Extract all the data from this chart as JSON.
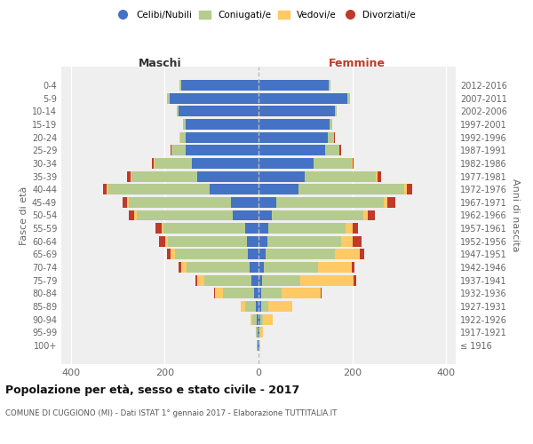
{
  "age_groups": [
    "100+",
    "95-99",
    "90-94",
    "85-89",
    "80-84",
    "75-79",
    "70-74",
    "65-69",
    "60-64",
    "55-59",
    "50-54",
    "45-49",
    "40-44",
    "35-39",
    "30-34",
    "25-29",
    "20-24",
    "15-19",
    "10-14",
    "5-9",
    "0-4"
  ],
  "birth_years": [
    "≤ 1916",
    "1917-1921",
    "1922-1926",
    "1927-1931",
    "1932-1936",
    "1937-1941",
    "1942-1946",
    "1947-1951",
    "1952-1956",
    "1957-1961",
    "1962-1966",
    "1967-1971",
    "1972-1976",
    "1977-1981",
    "1982-1986",
    "1987-1991",
    "1992-1996",
    "1997-2001",
    "2002-2006",
    "2007-2011",
    "2012-2016"
  ],
  "male": {
    "celibi": [
      2,
      2,
      4,
      6,
      10,
      15,
      18,
      22,
      25,
      28,
      55,
      58,
      105,
      130,
      142,
      155,
      155,
      155,
      170,
      190,
      165
    ],
    "coniugati": [
      1,
      3,
      10,
      22,
      65,
      100,
      135,
      155,
      168,
      175,
      205,
      218,
      215,
      140,
      80,
      30,
      12,
      5,
      5,
      5,
      3
    ],
    "vedovi": [
      0,
      1,
      3,
      10,
      18,
      15,
      12,
      10,
      5,
      4,
      4,
      4,
      3,
      2,
      2,
      1,
      1,
      0,
      0,
      0,
      0
    ],
    "divorziati": [
      0,
      0,
      0,
      0,
      2,
      5,
      5,
      8,
      14,
      12,
      12,
      10,
      8,
      8,
      3,
      2,
      1,
      0,
      0,
      0,
      0
    ]
  },
  "female": {
    "nubili": [
      1,
      2,
      3,
      5,
      5,
      8,
      12,
      15,
      18,
      20,
      28,
      38,
      85,
      98,
      118,
      142,
      148,
      152,
      162,
      190,
      150
    ],
    "coniugate": [
      1,
      2,
      6,
      15,
      45,
      80,
      115,
      148,
      158,
      165,
      195,
      228,
      225,
      152,
      80,
      30,
      12,
      5,
      5,
      5,
      3
    ],
    "vedove": [
      2,
      6,
      22,
      52,
      82,
      115,
      72,
      52,
      25,
      15,
      10,
      8,
      5,
      3,
      2,
      1,
      1,
      0,
      0,
      0,
      0
    ],
    "divorziate": [
      0,
      0,
      0,
      0,
      2,
      5,
      5,
      10,
      18,
      12,
      15,
      18,
      12,
      8,
      3,
      2,
      1,
      0,
      0,
      0,
      0
    ]
  },
  "colors": {
    "celibi": "#4472c4",
    "coniugati": "#b5cc8e",
    "vedovi": "#ffc966",
    "divorziati": "#c0392b"
  },
  "legend_labels": [
    "Celibi/Nubili",
    "Coniugati/e",
    "Vedovi/e",
    "Divorziati/e"
  ],
  "title": "Popolazione per età, sesso e stato civile - 2017",
  "subtitle": "COMUNE DI CUGGIONO (MI) - Dati ISTAT 1° gennaio 2017 - Elaborazione TUTTITALIA.IT",
  "ylabel_left": "Fasce di età",
  "ylabel_right": "Anni di nascita",
  "maschi_label": "Maschi",
  "femmine_label": "Femmine",
  "xlim": 420,
  "bg_color": "#ffffff",
  "plot_bg": "#efefef"
}
